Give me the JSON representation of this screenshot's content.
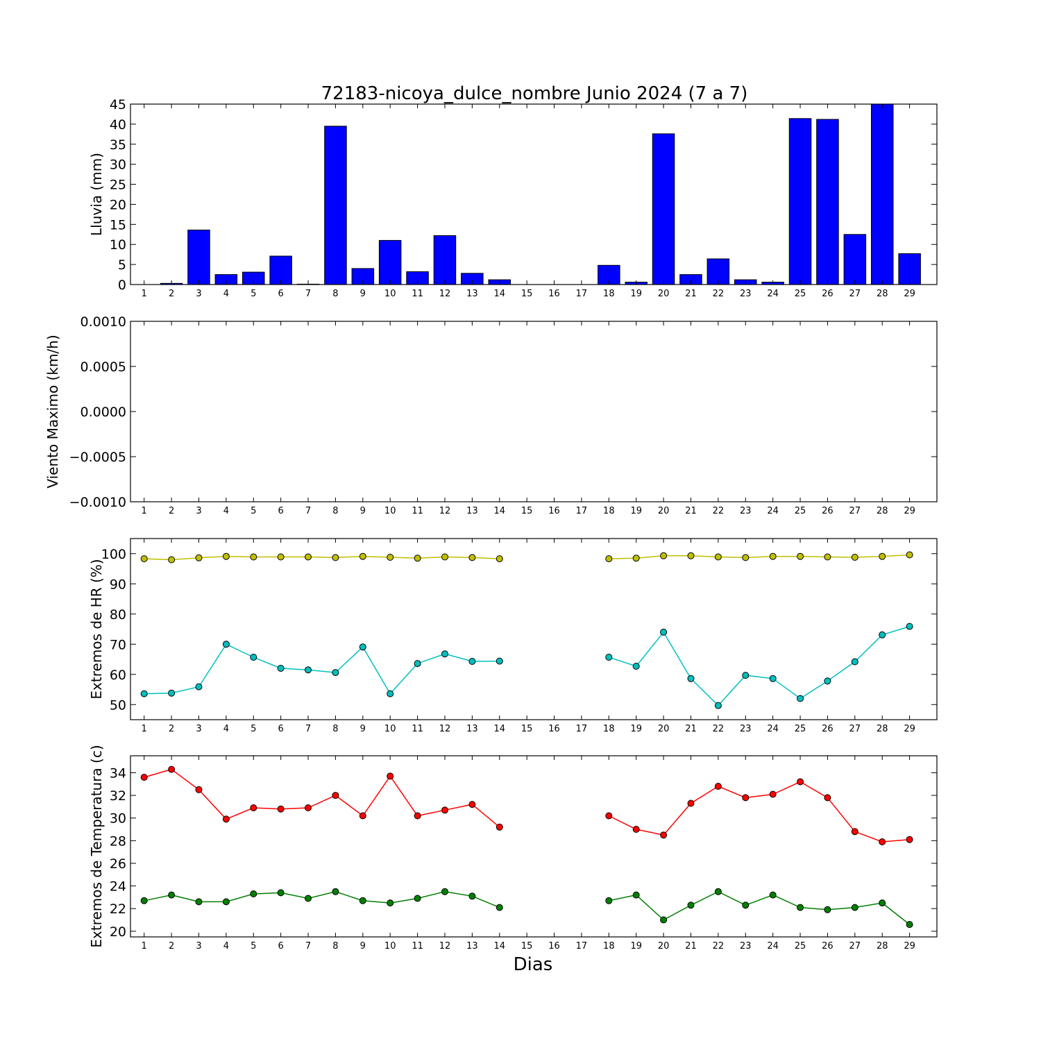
{
  "figure": {
    "title": "72183-nicoya_dulce_nombre Junio 2024  (7 a 7)",
    "xlabel": "Dias"
  },
  "chart_data": [
    {
      "type": "bar",
      "ylabel": "Lluvia (mm)",
      "categories": [
        "1",
        "2",
        "3",
        "4",
        "5",
        "6",
        "7",
        "8",
        "9",
        "10",
        "11",
        "12",
        "13",
        "14",
        "15",
        "16",
        "17",
        "18",
        "19",
        "20",
        "21",
        "22",
        "23",
        "24",
        "25",
        "26",
        "27",
        "28",
        "29"
      ],
      "ylim": [
        0,
        45
      ],
      "yticks": [
        "0",
        "5",
        "10",
        "15",
        "20",
        "25",
        "30",
        "35",
        "40",
        "45"
      ],
      "series": [
        {
          "color": "#0000ff",
          "values": [
            0.0,
            0.3,
            13.6,
            2.5,
            3.1,
            7.1,
            0.1,
            39.5,
            4.0,
            11.0,
            3.2,
            12.2,
            2.8,
            1.2,
            0.0,
            0.0,
            0.0,
            4.8,
            0.6,
            37.6,
            2.5,
            6.4,
            1.2,
            0.6,
            41.4,
            41.2,
            12.5,
            45.0,
            7.7
          ]
        }
      ]
    },
    {
      "type": "line",
      "ylabel": "Viento Maximo (km/h)",
      "categories": [
        "1",
        "2",
        "3",
        "4",
        "5",
        "6",
        "7",
        "8",
        "9",
        "10",
        "11",
        "12",
        "13",
        "14",
        "15",
        "16",
        "17",
        "18",
        "19",
        "20",
        "21",
        "22",
        "23",
        "24",
        "25",
        "26",
        "27",
        "28",
        "29"
      ],
      "ylim": [
        -0.001,
        0.001
      ],
      "yticks": [
        "−0.0010",
        "−0.0005",
        "0.0000",
        "0.0005",
        "0.0010"
      ],
      "series": []
    },
    {
      "type": "line",
      "ylabel": "Extremos de HR (%)",
      "categories": [
        "1",
        "2",
        "3",
        "4",
        "5",
        "6",
        "7",
        "8",
        "9",
        "10",
        "11",
        "12",
        "13",
        "14",
        "15",
        "16",
        "17",
        "18",
        "19",
        "20",
        "21",
        "22",
        "23",
        "24",
        "25",
        "26",
        "27",
        "28",
        "29"
      ],
      "ylim": [
        45,
        105
      ],
      "yticks": [
        "50",
        "60",
        "70",
        "80",
        "90",
        "100"
      ],
      "series": [
        {
          "color": "#bfbf00",
          "values": [
            98.3,
            98.0,
            98.6,
            99.1,
            98.9,
            98.9,
            98.9,
            98.7,
            99.1,
            98.8,
            98.5,
            98.9,
            98.7,
            98.3,
            null,
            null,
            null,
            98.3,
            98.5,
            99.3,
            99.3,
            98.9,
            98.7,
            99.1,
            99.1,
            98.9,
            98.8,
            99.1,
            99.6
          ]
        },
        {
          "color": "#00bfbf",
          "values": [
            53.6,
            53.8,
            55.9,
            70.0,
            65.7,
            62.0,
            61.5,
            60.6,
            69.1,
            53.6,
            63.6,
            66.8,
            64.3,
            64.4,
            null,
            null,
            null,
            65.7,
            62.7,
            74.0,
            58.6,
            49.7,
            59.7,
            58.6,
            52.0,
            57.8,
            64.2,
            73.1,
            75.9
          ]
        }
      ]
    },
    {
      "type": "line",
      "ylabel": "Extremos de Temperatura (c)",
      "categories": [
        "1",
        "2",
        "3",
        "4",
        "5",
        "6",
        "7",
        "8",
        "9",
        "10",
        "11",
        "12",
        "13",
        "14",
        "15",
        "16",
        "17",
        "18",
        "19",
        "20",
        "21",
        "22",
        "23",
        "24",
        "25",
        "26",
        "27",
        "28",
        "29"
      ],
      "ylim": [
        19.5,
        35.5
      ],
      "yticks": [
        "20",
        "22",
        "24",
        "26",
        "28",
        "30",
        "32",
        "34"
      ],
      "series": [
        {
          "color": "#ff0000",
          "values": [
            33.6,
            34.3,
            32.5,
            29.9,
            30.9,
            30.8,
            30.9,
            32.0,
            30.2,
            33.7,
            30.2,
            30.7,
            31.2,
            29.2,
            null,
            null,
            null,
            30.2,
            29.0,
            28.5,
            31.3,
            32.8,
            31.8,
            32.1,
            33.2,
            31.8,
            28.8,
            27.9,
            28.1
          ]
        },
        {
          "color": "#008000",
          "values": [
            22.7,
            23.2,
            22.6,
            22.6,
            23.3,
            23.4,
            22.9,
            23.5,
            22.7,
            22.5,
            22.9,
            23.5,
            23.1,
            22.1,
            null,
            null,
            null,
            22.7,
            23.2,
            21.0,
            22.3,
            23.5,
            22.3,
            23.2,
            22.1,
            21.9,
            22.1,
            22.5,
            20.6
          ]
        }
      ]
    }
  ]
}
